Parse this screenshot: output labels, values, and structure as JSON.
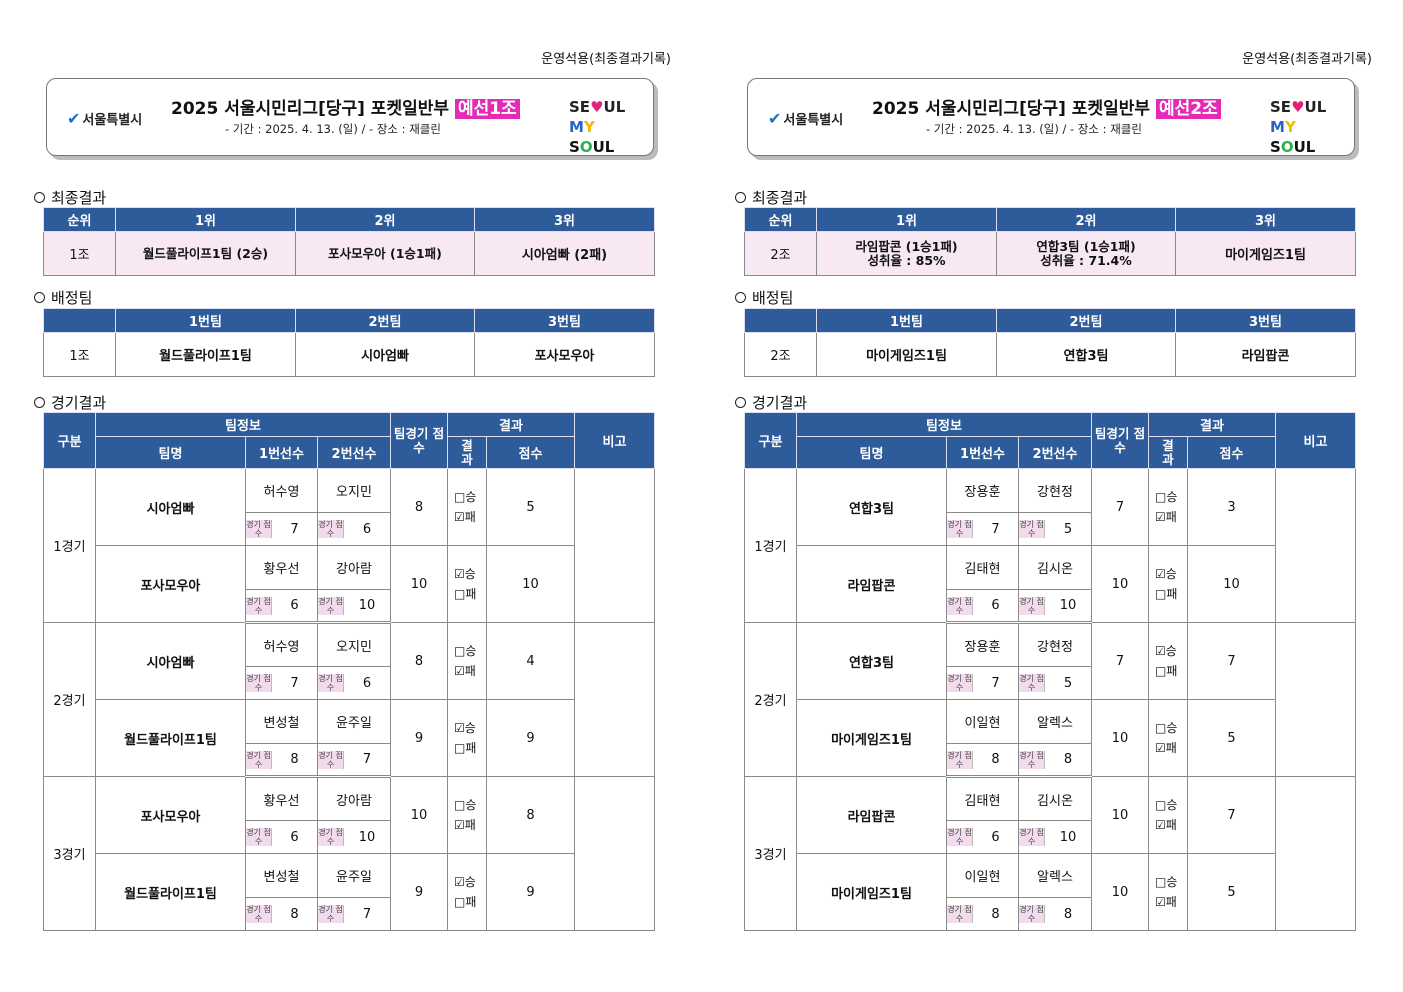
{
  "usage_note": "운영석용(최종결과기록)",
  "header": {
    "seoul_city": "서울특별시",
    "title_main": "2025  서울시민리그[당구]  포켓일반부 ",
    "subtitle": "- 기간 : 2025. 4. 13. (일) / - 장소 : 재클린",
    "seoul_logo_l1a": "SE",
    "seoul_logo_heart": "♥",
    "seoul_logo_l1b": "UL",
    "seoul_logo_l2a": "M",
    "seoul_logo_l2b": "Y",
    "seoul_logo_l2c": " S",
    "seoul_logo_l2d": "O",
    "seoul_logo_l2e": "UL"
  },
  "sections": {
    "final": "최종결과",
    "assign": "배정팀",
    "games": "경기결과"
  },
  "final_headers": [
    "순위",
    "1위",
    "2위",
    "3위"
  ],
  "assign_headers": [
    "",
    "1번팀",
    "2번팀",
    "3번팀"
  ],
  "game_headers": {
    "division": "구분",
    "team_info": "팀정보",
    "team_name": "팀명",
    "player1": "1번선수",
    "player2": "2번선수",
    "team_score": "팀경기 점수",
    "result": "결과",
    "result_sub": "결 과",
    "score": "점수",
    "note": "비고",
    "score_label": "경기 점수",
    "win": "□승",
    "win_checked": "☑승",
    "loss": "□패",
    "loss_checked": "☑패"
  },
  "panels": [
    {
      "group_tag": "예선1조",
      "final": {
        "group": "1조",
        "first": "월드풀라이프1팀 (2승)",
        "first2": "",
        "second": "포사모우아 (1승1패)",
        "second2": "",
        "third": "시아엄빠 (2패)"
      },
      "assign": {
        "group": "1조",
        "t1": "월드풀라이프1팀",
        "t2": "시아엄빠",
        "t3": "포사모우아"
      },
      "games": [
        {
          "label": "1경기",
          "a": {
            "team": "시아엄빠",
            "p1": "허수영",
            "p2": "오지민",
            "s1": "7",
            "s2": "6",
            "team_score": "8",
            "win": false,
            "score": "5"
          },
          "b": {
            "team": "포사모우아",
            "p1": "황우선",
            "p2": "강아람",
            "s1": "6",
            "s2": "10",
            "team_score": "10",
            "win": true,
            "score": "10"
          }
        },
        {
          "label": "2경기",
          "a": {
            "team": "시아엄빠",
            "p1": "허수영",
            "p2": "오지민",
            "s1": "7",
            "s2": "6",
            "team_score": "8",
            "win": false,
            "score": "4"
          },
          "b": {
            "team": "월드풀라이프1팀",
            "p1": "변성철",
            "p2": "윤주일",
            "s1": "8",
            "s2": "7",
            "team_score": "9",
            "win": true,
            "score": "9"
          }
        },
        {
          "label": "3경기",
          "a": {
            "team": "포사모우아",
            "p1": "황우선",
            "p2": "강아람",
            "s1": "6",
            "s2": "10",
            "team_score": "10",
            "win": false,
            "score": "8"
          },
          "b": {
            "team": "월드풀라이프1팀",
            "p1": "변성철",
            "p2": "윤주일",
            "s1": "8",
            "s2": "7",
            "team_score": "9",
            "win": true,
            "score": "9"
          }
        }
      ]
    },
    {
      "group_tag": "예선2조",
      "final": {
        "group": "2조",
        "first": "라임팝콘 (1승1패)",
        "first2": "성취율 : 85%",
        "second": "연합3팀 (1승1패)",
        "second2": "성취율 : 71.4%",
        "third": "마이게임즈1팀"
      },
      "assign": {
        "group": "2조",
        "t1": "마이게임즈1팀",
        "t2": "연합3팀",
        "t3": "라임팝콘"
      },
      "games": [
        {
          "label": "1경기",
          "a": {
            "team": "연합3팀",
            "p1": "장용훈",
            "p2": "강현정",
            "s1": "7",
            "s2": "5",
            "team_score": "7",
            "win": false,
            "score": "3"
          },
          "b": {
            "team": "라임팝콘",
            "p1": "김태현",
            "p2": "김시온",
            "s1": "6",
            "s2": "10",
            "team_score": "10",
            "win": true,
            "score": "10"
          }
        },
        {
          "label": "2경기",
          "a": {
            "team": "연합3팀",
            "p1": "장용훈",
            "p2": "강현정",
            "s1": "7",
            "s2": "5",
            "team_score": "7",
            "win": true,
            "score": "7"
          },
          "b": {
            "team": "마이게임즈1팀",
            "p1": "이일현",
            "p2": "알렉스",
            "s1": "8",
            "s2": "8",
            "team_score": "10",
            "win": false,
            "score": "5"
          }
        },
        {
          "label": "3경기",
          "a": {
            "team": "라임팝콘",
            "p1": "김태현",
            "p2": "김시온",
            "s1": "6",
            "s2": "10",
            "team_score": "10",
            "win": false,
            "score": "7"
          },
          "b": {
            "team": "마이게임즈1팀",
            "p1": "이일현",
            "p2": "알렉스",
            "s1": "8",
            "s2": "8",
            "team_score": "10",
            "win": false,
            "score": "5"
          }
        }
      ]
    }
  ]
}
